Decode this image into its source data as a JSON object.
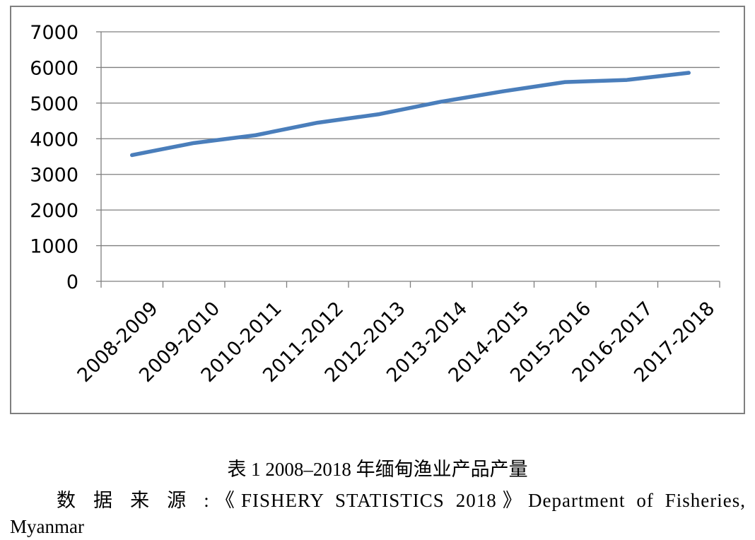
{
  "chart_data": {
    "type": "line",
    "categories": [
      "2008-2009",
      "2009-2010",
      "2010-2011",
      "2011-2012",
      "2012-2013",
      "2013-2014",
      "2014-2015",
      "2015-2016",
      "2016-2017",
      "2017-2018"
    ],
    "series": [
      {
        "values": [
          3540,
          3880,
          4100,
          4450,
          4690,
          5040,
          5330,
          5590,
          5650,
          5850
        ],
        "color": "#4a7ebb"
      }
    ],
    "yticks": [
      "0",
      "1000",
      "2000",
      "3000",
      "4000",
      "5000",
      "6000",
      "7000"
    ],
    "ylim": [
      0,
      7000
    ],
    "grid": true,
    "legend": "none"
  },
  "caption": {
    "title": "表 1 2008–2018 年缅甸渔业产品产量",
    "source_line": "数 据 来 源 :《FISHERY STATISTICS 2018》Department of Fisheries,",
    "source_cont": "Myanmar"
  }
}
